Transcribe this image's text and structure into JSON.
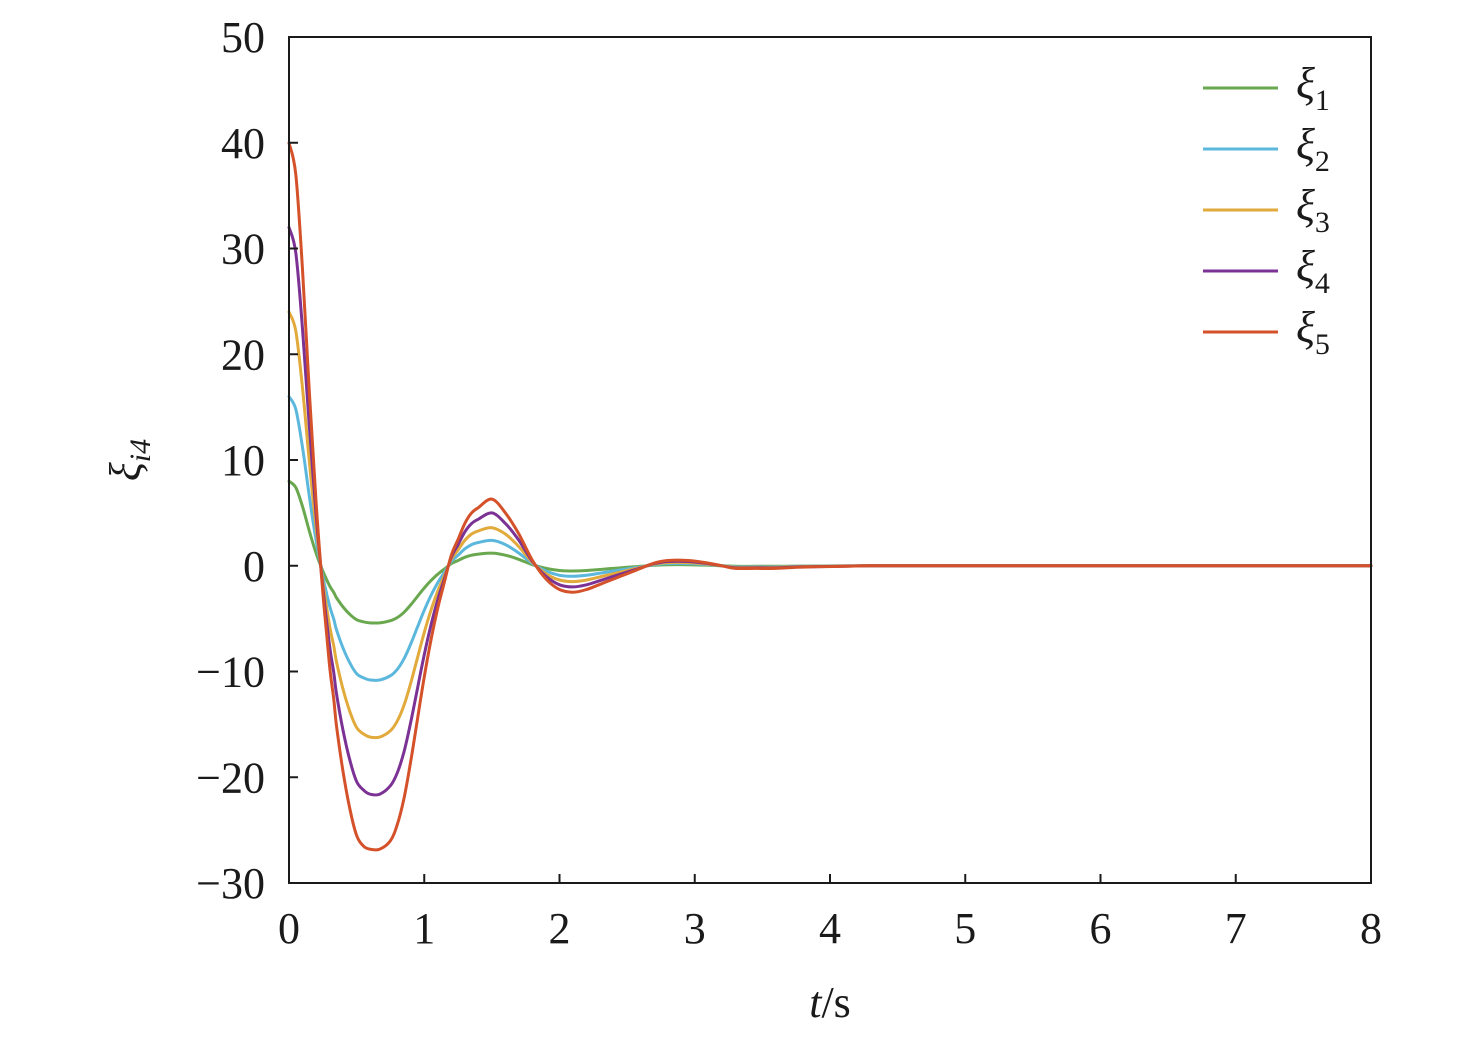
{
  "chart_data": {
    "type": "line",
    "xlabel_italic": "t",
    "xlabel_unit": "/s",
    "ylabel_symbol": "ξ",
    "ylabel_subscript": "i4",
    "xlim": [
      0,
      8
    ],
    "ylim": [
      -30,
      50
    ],
    "x_ticks": [
      0,
      1,
      2,
      3,
      4,
      5,
      6,
      7,
      8
    ],
    "x_tick_labels": [
      "0",
      "1",
      "2",
      "3",
      "4",
      "5",
      "6",
      "7",
      "8"
    ],
    "y_ticks": [
      -30,
      -20,
      -10,
      0,
      10,
      20,
      30,
      40,
      50
    ],
    "y_tick_labels": [
      "−30",
      "−20",
      "−10",
      "0",
      "10",
      "20",
      "30",
      "40",
      "50"
    ],
    "grid": false,
    "legend_position": "top-right",
    "x": [
      0,
      0.05,
      0.1,
      0.15,
      0.2,
      0.25,
      0.3,
      0.33,
      0.35,
      0.4,
      0.45,
      0.5,
      0.55,
      0.6,
      0.67,
      0.75,
      0.8,
      0.85,
      0.9,
      0.95,
      1.0,
      1.05,
      1.1,
      1.15,
      1.2,
      1.25,
      1.3,
      1.35,
      1.4,
      1.5,
      1.6,
      1.7,
      1.8,
      1.9,
      2.0,
      2.1,
      2.2,
      2.3,
      2.4,
      2.5,
      2.6,
      2.7,
      2.8,
      2.95,
      3.1,
      3.2,
      3.3,
      3.45,
      3.6,
      3.75,
      3.9,
      4.1,
      4.3,
      4.6,
      5.0,
      6.0,
      7.0,
      8.0
    ],
    "series": [
      {
        "name": "ξ",
        "name_subscript": "1",
        "color": "#6aa84f",
        "values": [
          8.0,
          7.4,
          5.6,
          3.3,
          1.2,
          -0.5,
          -1.9,
          -2.5,
          -3.0,
          -3.9,
          -4.6,
          -5.1,
          -5.3,
          -5.4,
          -5.4,
          -5.2,
          -4.9,
          -4.4,
          -3.7,
          -2.9,
          -2.1,
          -1.4,
          -0.8,
          -0.3,
          0.2,
          0.5,
          0.8,
          1.0,
          1.1,
          1.2,
          1.0,
          0.6,
          0.1,
          -0.25,
          -0.45,
          -0.5,
          -0.45,
          -0.35,
          -0.25,
          -0.15,
          -0.05,
          0.05,
          0.1,
          0.1,
          0.05,
          0.0,
          -0.05,
          -0.05,
          -0.05,
          -0.03,
          -0.02,
          -0.01,
          0.0,
          0.0,
          0.0,
          0.0,
          0.0,
          0.0
        ]
      },
      {
        "name": "ξ",
        "name_subscript": "2",
        "color": "#5bb8dc",
        "values": [
          16.0,
          14.8,
          11.2,
          6.6,
          2.4,
          -1.0,
          -3.8,
          -5.0,
          -6.0,
          -7.8,
          -9.2,
          -10.2,
          -10.6,
          -10.8,
          -10.8,
          -10.4,
          -9.8,
          -8.8,
          -7.4,
          -5.8,
          -4.2,
          -2.8,
          -1.6,
          -0.6,
          0.4,
          1.0,
          1.6,
          2.0,
          2.2,
          2.4,
          2.0,
          1.2,
          0.2,
          -0.5,
          -0.9,
          -1.0,
          -0.9,
          -0.7,
          -0.5,
          -0.3,
          -0.1,
          0.1,
          0.2,
          0.2,
          0.1,
          0.0,
          -0.1,
          -0.1,
          -0.1,
          -0.06,
          -0.04,
          -0.02,
          0.0,
          0.0,
          0.0,
          0.0,
          0.0,
          0.0
        ]
      },
      {
        "name": "ξ",
        "name_subscript": "3",
        "color": "#e2a93b",
        "values": [
          24.0,
          22.2,
          16.8,
          9.9,
          3.6,
          -1.5,
          -5.7,
          -7.5,
          -9.0,
          -11.7,
          -13.8,
          -15.3,
          -15.9,
          -16.2,
          -16.2,
          -15.6,
          -14.7,
          -13.2,
          -11.1,
          -8.7,
          -6.3,
          -4.2,
          -2.4,
          -0.9,
          0.6,
          1.5,
          2.4,
          3.0,
          3.3,
          3.6,
          3.0,
          1.8,
          0.3,
          -0.75,
          -1.35,
          -1.5,
          -1.35,
          -1.05,
          -0.75,
          -0.45,
          -0.15,
          0.15,
          0.3,
          0.3,
          0.15,
          0.0,
          -0.15,
          -0.15,
          -0.15,
          -0.09,
          -0.06,
          -0.03,
          0.0,
          0.0,
          0.0,
          0.0,
          0.0,
          0.0
        ]
      },
      {
        "name": "ξ",
        "name_subscript": "4",
        "color": "#7b3294",
        "values": [
          32.0,
          29.6,
          22.4,
          13.2,
          4.8,
          -2.0,
          -7.6,
          -10.0,
          -12.0,
          -15.6,
          -18.4,
          -20.4,
          -21.2,
          -21.6,
          -21.6,
          -20.8,
          -19.6,
          -17.6,
          -14.8,
          -11.6,
          -8.4,
          -5.6,
          -3.2,
          -1.2,
          0.8,
          2.0,
          3.2,
          4.0,
          4.4,
          5.0,
          4.0,
          2.4,
          0.4,
          -1.0,
          -1.8,
          -2.0,
          -1.8,
          -1.4,
          -1.0,
          -0.6,
          -0.2,
          0.2,
          0.4,
          0.4,
          0.2,
          0.0,
          -0.2,
          -0.2,
          -0.2,
          -0.12,
          -0.08,
          -0.04,
          0.0,
          0.0,
          0.0,
          0.0,
          0.0,
          0.0
        ]
      },
      {
        "name": "ξ",
        "name_subscript": "5",
        "color": "#d4512a",
        "values": [
          40.0,
          37.0,
          28.0,
          16.5,
          6.0,
          -2.5,
          -9.5,
          -12.5,
          -15.0,
          -19.5,
          -23.0,
          -25.5,
          -26.5,
          -26.8,
          -26.8,
          -26.0,
          -24.5,
          -22.0,
          -18.5,
          -14.5,
          -10.5,
          -7.0,
          -4.0,
          -1.5,
          1.0,
          2.5,
          4.0,
          5.0,
          5.5,
          6.3,
          5.0,
          3.0,
          0.5,
          -1.25,
          -2.25,
          -2.5,
          -2.25,
          -1.75,
          -1.25,
          -0.75,
          -0.25,
          0.25,
          0.5,
          0.5,
          0.25,
          0.0,
          -0.25,
          -0.25,
          -0.25,
          -0.15,
          -0.1,
          -0.05,
          0.0,
          0.0,
          0.0,
          0.0,
          0.0,
          0.0
        ]
      }
    ]
  }
}
